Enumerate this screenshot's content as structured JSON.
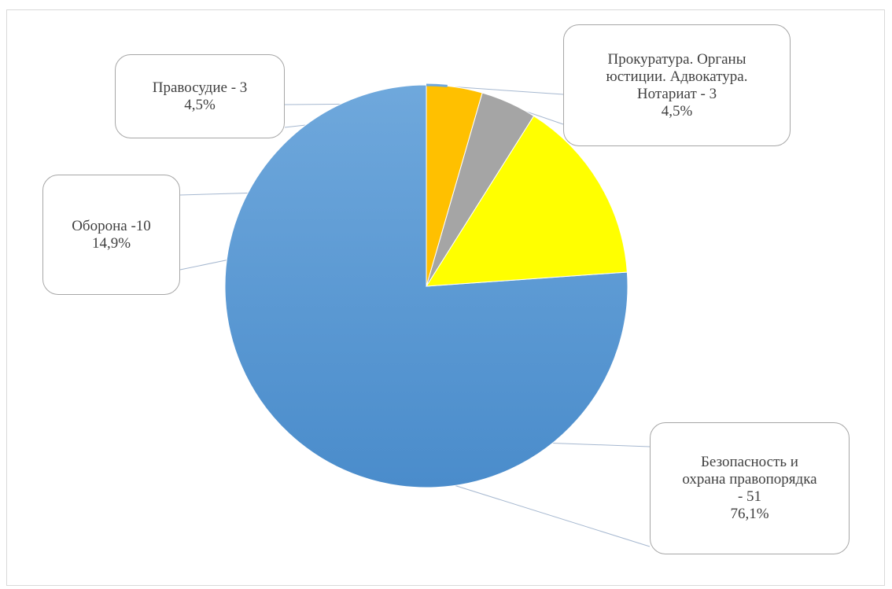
{
  "chart_data": {
    "type": "pie",
    "slices": [
      {
        "label_lines": [
          "Безопасность и",
          "охрана правопорядка",
          "- 51"
        ],
        "category": "Безопасность и охрана правопорядка",
        "value": 51,
        "percent_text": "76,1%",
        "color_top": "#6fa8dc",
        "color_bottom": "#4a8ccb"
      },
      {
        "label_lines": [
          "Оборона -10"
        ],
        "category": "Оборона",
        "value": 10,
        "percent_text": "14,9%",
        "color_top": "#ffff00",
        "color_bottom": "#ffff00"
      },
      {
        "label_lines": [
          "Правосудие - 3"
        ],
        "category": "Правосудие",
        "value": 3,
        "percent_text": "4,5%",
        "color_top": "#a5a5a5",
        "color_bottom": "#a5a5a5"
      },
      {
        "label_lines": [
          "Прокуратура. Органы",
          "юстиции. Адвокатура.",
          "Нотариат - 3"
        ],
        "category": "Прокуратура. Органы юстиции. Адвокатура. Нотариат",
        "value": 3,
        "percent_text": "4,5%",
        "color_top": "#ffc000",
        "color_bottom": "#ffc000"
      }
    ],
    "slice_order_from_top": "counter-clockwise",
    "legend": "none",
    "data_labels": "callouts"
  }
}
